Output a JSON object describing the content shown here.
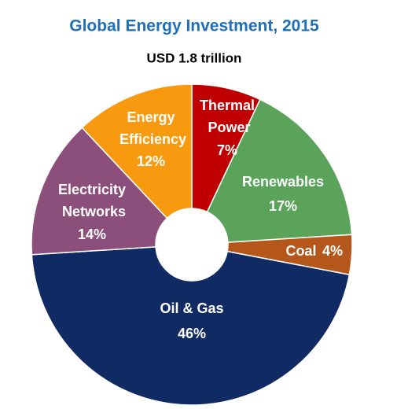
{
  "chart_data": {
    "type": "donut",
    "title": "Global Energy Investment, 2015",
    "subtitle": "USD 1.8 trillion",
    "categories": [
      "Thermal Power",
      "Renewables",
      "Coal",
      "Oil & Gas",
      "Electricity Networks",
      "Energy Efficiency"
    ],
    "values": [
      7,
      17,
      4,
      46,
      14,
      12
    ],
    "value_labels": [
      "7%",
      "17%",
      "4%",
      "46%",
      "14%",
      "12%"
    ],
    "colors": [
      "#c00000",
      "#5ba35b",
      "#b5561a",
      "#102a63",
      "#8c4f7c",
      "#f79a10"
    ]
  }
}
